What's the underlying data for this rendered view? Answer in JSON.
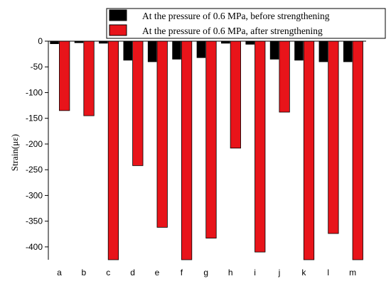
{
  "chart_data": {
    "type": "bar",
    "categories": [
      "a",
      "b",
      "c",
      "d",
      "e",
      "f",
      "g",
      "h",
      "i",
      "j",
      "k",
      "l",
      "m"
    ],
    "ylabel": "Strain(με)",
    "ylim": [
      -425,
      0
    ],
    "yticks": [
      0,
      -50,
      -100,
      -150,
      -200,
      -250,
      -300,
      -350,
      -400
    ],
    "legend_position": "top-right",
    "series": [
      {
        "name": "At the pressure of 0.6 MPa, before strengthening",
        "color": "#000000",
        "values": [
          -5,
          -3,
          -4,
          -37,
          -40,
          -35,
          -32,
          -4,
          -6,
          -35,
          -37,
          -40,
          -40
        ]
      },
      {
        "name": "At the pressure of 0.6 MPa, after strengthening",
        "color": "#e8141a",
        "values": [
          -135,
          -145,
          -425,
          -242,
          -362,
          -425,
          -383,
          -208,
          -410,
          -138,
          -425,
          -374,
          -425
        ]
      }
    ]
  }
}
